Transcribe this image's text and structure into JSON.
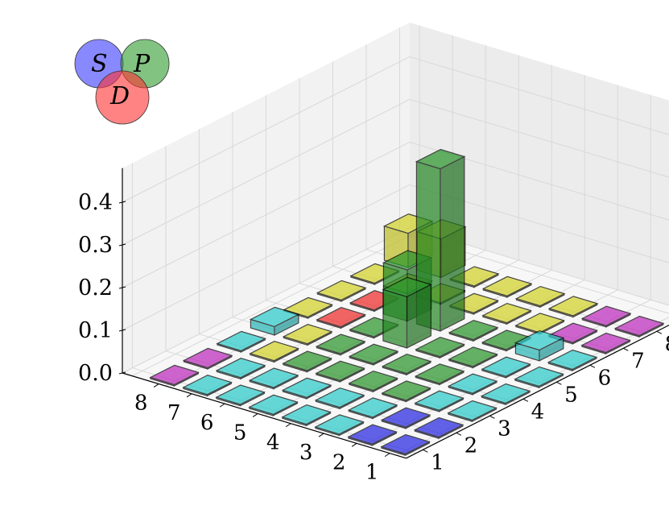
{
  "chart_data": {
    "type": "bar3d",
    "title": "",
    "x_ticks": [
      "1",
      "2",
      "3",
      "4",
      "5",
      "6",
      "7",
      "8"
    ],
    "y_ticks": [
      "1",
      "2",
      "3",
      "4",
      "5",
      "6",
      "7",
      "8"
    ],
    "z_ticks": [
      "0.0",
      "0.1",
      "0.2",
      "0.3",
      "0.4"
    ],
    "z_range": [
      0.0,
      0.48
    ],
    "grid": true,
    "legend": {
      "type": "venn",
      "placement": "top-left",
      "labels": [
        "S",
        "P",
        "D"
      ],
      "colors": [
        "#3b3bff",
        "#2e9b2e",
        "#ff3030"
      ]
    },
    "colors": {
      "blue": "#2626d8",
      "cyan": "#2bc0c0",
      "green": "#2a8f2a",
      "yellow": "#c9c929",
      "magenta": "#b42ab4",
      "red": "#e52a2a"
    },
    "row_labels_note_free": null,
    "bars": [
      [
        1,
        1,
        0.003,
        "blue"
      ],
      [
        1,
        2,
        0.003,
        "blue"
      ],
      [
        1,
        3,
        0.003,
        "cyan"
      ],
      [
        1,
        4,
        0.003,
        "cyan"
      ],
      [
        1,
        5,
        0.003,
        "cyan"
      ],
      [
        1,
        6,
        0.003,
        "cyan"
      ],
      [
        1,
        7,
        0.003,
        "magenta"
      ],
      [
        1,
        8,
        0.003,
        "magenta"
      ],
      [
        2,
        1,
        0.003,
        "blue"
      ],
      [
        2,
        2,
        0.003,
        "blue"
      ],
      [
        2,
        3,
        0.003,
        "cyan"
      ],
      [
        2,
        4,
        0.003,
        "cyan"
      ],
      [
        2,
        5,
        0.003,
        "cyan"
      ],
      [
        2,
        6,
        0.025,
        "cyan"
      ],
      [
        2,
        7,
        0.003,
        "magenta"
      ],
      [
        2,
        8,
        0.003,
        "magenta"
      ],
      [
        3,
        1,
        0.003,
        "cyan"
      ],
      [
        3,
        2,
        0.003,
        "cyan"
      ],
      [
        3,
        3,
        0.003,
        "green"
      ],
      [
        3,
        4,
        0.003,
        "green"
      ],
      [
        3,
        5,
        0.003,
        "green"
      ],
      [
        3,
        6,
        0.003,
        "green"
      ],
      [
        3,
        7,
        0.003,
        "yellow"
      ],
      [
        3,
        8,
        0.003,
        "yellow"
      ],
      [
        4,
        1,
        0.003,
        "cyan"
      ],
      [
        4,
        2,
        0.003,
        "cyan"
      ],
      [
        4,
        3,
        0.003,
        "green"
      ],
      [
        4,
        4,
        0.003,
        "green"
      ],
      [
        4,
        5,
        0.003,
        "green"
      ],
      [
        4,
        6,
        0.003,
        "green"
      ],
      [
        4,
        7,
        0.003,
        "yellow"
      ],
      [
        4,
        8,
        0.003,
        "yellow"
      ],
      [
        5,
        1,
        0.003,
        "cyan"
      ],
      [
        5,
        2,
        0.003,
        "cyan"
      ],
      [
        5,
        3,
        0.003,
        "green"
      ],
      [
        5,
        4,
        0.003,
        "green"
      ],
      [
        5,
        5,
        0.12,
        "green"
      ],
      [
        5,
        6,
        0.38,
        "green"
      ],
      [
        5,
        7,
        0.003,
        "yellow"
      ],
      [
        5,
        8,
        0.003,
        "yellow"
      ],
      [
        6,
        1,
        0.003,
        "cyan"
      ],
      [
        6,
        2,
        0.003,
        "cyan"
      ],
      [
        6,
        3,
        0.003,
        "green"
      ],
      [
        6,
        4,
        0.003,
        "green"
      ],
      [
        6,
        5,
        0.003,
        "green"
      ],
      [
        6,
        6,
        0.12,
        "green"
      ],
      [
        6,
        7,
        0.003,
        "yellow"
      ],
      [
        6,
        8,
        0.003,
        "yellow"
      ],
      [
        7,
        1,
        0.003,
        "cyan"
      ],
      [
        7,
        2,
        0.003,
        "cyan"
      ],
      [
        7,
        3,
        0.003,
        "yellow"
      ],
      [
        7,
        4,
        0.003,
        "yellow"
      ],
      [
        7,
        5,
        0.003,
        "red"
      ],
      [
        7,
        6,
        0.003,
        "red"
      ],
      [
        7,
        7,
        0.003,
        "yellow"
      ],
      [
        7,
        8,
        0.09,
        "yellow"
      ],
      [
        8,
        1,
        0.003,
        "magenta"
      ],
      [
        8,
        2,
        0.003,
        "magenta"
      ],
      [
        8,
        3,
        0.003,
        "cyan"
      ],
      [
        8,
        4,
        0.02,
        "cyan"
      ],
      [
        8,
        5,
        0.003,
        "yellow"
      ],
      [
        8,
        6,
        0.003,
        "yellow"
      ],
      [
        8,
        7,
        0.003,
        "yellow"
      ],
      [
        8,
        8,
        0.08,
        "yellow"
      ]
    ]
  }
}
